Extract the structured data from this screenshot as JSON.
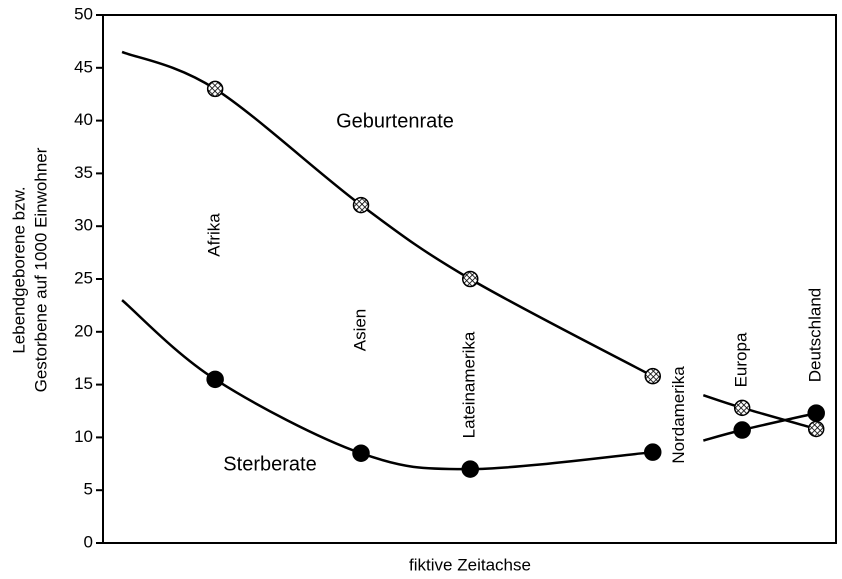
{
  "chart_data": {
    "type": "line",
    "ylabel": [
      "Lebendgeborene bzw.",
      "Gestorbene auf 1000 Einwohner"
    ],
    "xlabel": "fiktive Zeitachse",
    "xlim": [
      0,
      100
    ],
    "ylim": [
      0,
      50
    ],
    "yticks": [
      0,
      5,
      10,
      15,
      20,
      25,
      30,
      35,
      40,
      45,
      50
    ],
    "grid": false,
    "x": [
      2.6,
      15.3,
      35.2,
      50.1,
      75.0,
      78.5,
      81.9,
      87.2,
      97.3
    ],
    "point_labels": [
      null,
      "Afrika",
      "Asien",
      "Lateinamerika",
      "Nordamerika",
      null,
      null,
      "Europa",
      "Deutschland"
    ],
    "series": [
      {
        "name": "Geburtenrate",
        "color": "#000000",
        "marker": "hatched",
        "values": [
          46.5,
          43,
          32,
          25,
          15.8,
          null,
          14,
          12.8,
          10.8
        ]
      },
      {
        "name": "Sterberate",
        "color": "#000000",
        "marker": "filled",
        "values": [
          23,
          15.5,
          8.5,
          7,
          8.6,
          null,
          9.7,
          10.7,
          12.3
        ]
      }
    ]
  }
}
